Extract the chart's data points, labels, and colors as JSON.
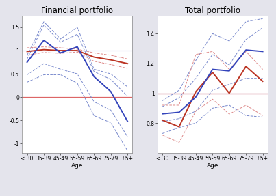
{
  "age_labels": [
    "< 30",
    "35-39",
    "45-49",
    "55-59",
    "65-69",
    "75-79",
    "85+"
  ],
  "left_title": "Financial portfolio",
  "right_title": "Total portfolio",
  "xlabel": "Age",
  "left": {
    "blue_main": [
      0.75,
      1.22,
      0.95,
      1.08,
      0.44,
      0.12,
      -0.52
    ],
    "blue_ci_up2": [
      0.9,
      1.62,
      1.25,
      1.5,
      0.6,
      0.5,
      0.22
    ],
    "blue_ci_up1": [
      0.82,
      1.55,
      1.18,
      1.35,
      0.55,
      0.38,
      0.02
    ],
    "blue_ci_lo1": [
      0.48,
      0.72,
      0.6,
      0.5,
      -0.1,
      -0.28,
      -0.85
    ],
    "blue_ci_lo2": [
      0.32,
      0.48,
      0.48,
      0.3,
      -0.4,
      -0.55,
      -1.15
    ],
    "red_main": [
      0.98,
      1.02,
      1.0,
      1.0,
      0.86,
      0.8,
      0.72
    ],
    "red_ci_up": [
      1.06,
      1.08,
      1.06,
      1.03,
      0.95,
      0.9,
      0.82
    ],
    "red_ci_lo": [
      0.9,
      0.96,
      0.94,
      0.97,
      0.77,
      0.7,
      0.62
    ],
    "hline_red": 0.0,
    "ylim": [
      -1.2,
      1.75
    ],
    "yticks": [
      -1.0,
      -0.5,
      0.0,
      0.5,
      1.0,
      1.5
    ]
  },
  "right": {
    "blue_main": [
      0.862,
      0.872,
      0.975,
      1.16,
      1.15,
      1.29,
      1.28
    ],
    "blue_ci_up2": [
      0.95,
      1.02,
      1.22,
      1.4,
      1.35,
      1.48,
      1.5
    ],
    "blue_ci_up1": [
      0.91,
      0.97,
      1.1,
      1.26,
      1.19,
      1.36,
      1.44
    ],
    "blue_ci_lo1": [
      0.81,
      0.83,
      0.88,
      1.02,
      1.06,
      1.1,
      1.1
    ],
    "blue_ci_lo2": [
      0.73,
      0.77,
      0.8,
      0.9,
      0.92,
      0.85,
      0.84
    ],
    "red_main": [
      0.82,
      0.775,
      1.01,
      1.14,
      1.0,
      1.18,
      1.08
    ],
    "red_ci_up": [
      0.92,
      0.92,
      1.26,
      1.28,
      1.16,
      1.28,
      1.16
    ],
    "red_ci_lo": [
      0.72,
      0.67,
      0.88,
      0.96,
      0.86,
      0.92,
      0.85
    ],
    "hline_red": 1.0,
    "ylim": [
      0.6,
      1.52
    ],
    "yticks": [
      0.8,
      1.0,
      1.2,
      1.4
    ]
  },
  "blue_color": "#3344bb",
  "red_color": "#bb3322",
  "blue_ci_color": "#7788cc",
  "red_ci_color": "#dd8888",
  "hline_blue_color": "#aaaadd",
  "hline_red_color": "#dd6666",
  "bg_color": "#e4e4ec",
  "plot_bg": "#ffffff",
  "title_fontsize": 8.5,
  "tick_fontsize": 5.5,
  "label_fontsize": 6.5,
  "legend_fontsize": 6.0
}
